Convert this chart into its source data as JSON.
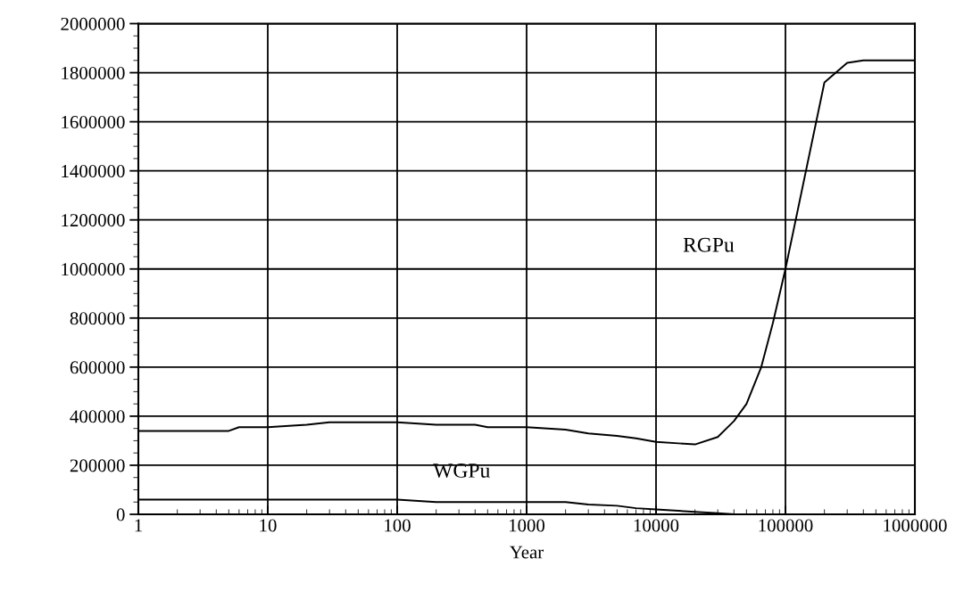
{
  "chart_data": {
    "type": "line",
    "xlabel": "Year",
    "log": "x",
    "grid": true,
    "marker": "none",
    "line_style": "solid",
    "xlim": [
      1,
      1000000
    ],
    "xticks": [
      1,
      10,
      100,
      1000,
      10000,
      100000,
      1000000
    ],
    "ylim": [
      0,
      2000000
    ],
    "yticks": [
      0,
      200000,
      400000,
      600000,
      800000,
      1000000,
      1200000,
      1400000,
      1600000,
      1800000,
      2000000
    ],
    "series": [
      {
        "name": "RGPu",
        "color": "#000000",
        "x": [
          1,
          5,
          6,
          10,
          20,
          30,
          100,
          200,
          400,
          500,
          1000,
          2000,
          3000,
          5000,
          7000,
          10000,
          20000,
          30000,
          40000,
          50000,
          65000,
          80000,
          100000,
          200000,
          300000,
          400000,
          1000000
        ],
        "values": [
          340000,
          340000,
          355000,
          355000,
          365000,
          375000,
          375000,
          365000,
          365000,
          355000,
          355000,
          345000,
          330000,
          320000,
          310000,
          295000,
          285000,
          315000,
          380000,
          450000,
          600000,
          780000,
          1000000,
          1760000,
          1840000,
          1850000,
          1850000
        ]
      },
      {
        "name": "WGPu",
        "color": "#000000",
        "x": [
          1,
          100,
          200,
          2000,
          3000,
          5000,
          7000,
          10000,
          20000,
          30000,
          40000
        ],
        "values": [
          60000,
          60000,
          50000,
          50000,
          40000,
          35000,
          25000,
          20000,
          10000,
          5000,
          0
        ]
      }
    ]
  }
}
